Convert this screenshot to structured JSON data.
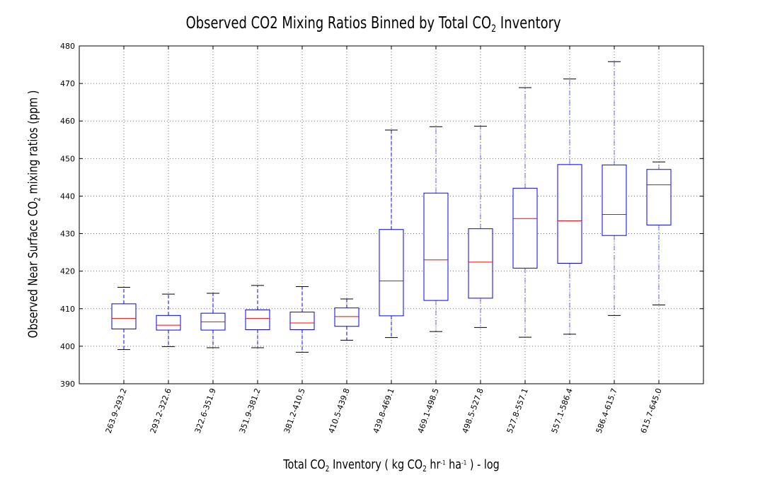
{
  "chart_data": {
    "type": "boxplot",
    "title_main": "Observed CO2 Mixing Ratios  Binned by Total CO",
    "title_sub": "2",
    "title_end": " Inventory",
    "ylabel_main": "Observed Near Surface CO",
    "ylabel_sub": "2",
    "ylabel_end": " mixing ratios (ppm )",
    "xlabel_a": "Total CO",
    "xlabel_sub1": "2",
    "xlabel_b": " Inventory ( kg CO",
    "xlabel_sub2": "2",
    "xlabel_c": " hr",
    "xlabel_sup1": "-1",
    "xlabel_d": " ha",
    "xlabel_sup2": "-1",
    "xlabel_e": " ) - log",
    "ylim": [
      390,
      480
    ],
    "yticks": [
      390,
      400,
      410,
      420,
      430,
      440,
      450,
      460,
      470,
      480
    ],
    "grid": true,
    "box_color": "#0000ff",
    "median_color": "#ff0000",
    "whisker_cap_color": "#000000",
    "categories": [
      "263.9-293.2",
      "293.2-322.6",
      "322.6-351.9",
      "351.9-381.2",
      "381.2-410.5",
      "410.5-439.8",
      "439.8-469.1",
      "469.1-498.5",
      "498.5-527.8",
      "527.8-557.1",
      "557.1-586.4",
      "586.4-615.7",
      "615.7-645.0"
    ],
    "boxes": [
      {
        "whisker_low": 399.1,
        "q1": 404.6,
        "median": 407.4,
        "q3": 411.3,
        "whisker_high": 415.7,
        "whisker_style": "dashed"
      },
      {
        "whisker_low": 399.9,
        "q1": 404.3,
        "median": 405.6,
        "q3": 408.2,
        "whisker_high": 413.9,
        "whisker_style": "dashed"
      },
      {
        "whisker_low": 399.6,
        "q1": 404.3,
        "median": 406.5,
        "q3": 408.8,
        "whisker_high": 414.1,
        "whisker_style": "dashed"
      },
      {
        "whisker_low": 399.6,
        "q1": 404.4,
        "median": 407.4,
        "q3": 409.7,
        "whisker_high": 416.2,
        "whisker_style": "dashed"
      },
      {
        "whisker_low": 398.4,
        "q1": 404.4,
        "median": 406.2,
        "q3": 409.1,
        "whisker_high": 415.9,
        "whisker_style": "dashed"
      },
      {
        "whisker_low": 401.6,
        "q1": 405.3,
        "median": 407.9,
        "q3": 410.2,
        "whisker_high": 412.6,
        "whisker_style": "dashed"
      },
      {
        "whisker_low": 402.3,
        "q1": 408.1,
        "median": 417.4,
        "q3": 431.1,
        "whisker_high": 457.6,
        "whisker_style": "dashed"
      },
      {
        "whisker_low": 403.9,
        "q1": 412.2,
        "median": 423.0,
        "q3": 440.8,
        "whisker_high": 458.5,
        "whisker_style": "dashdot"
      },
      {
        "whisker_low": 405.0,
        "q1": 412.8,
        "median": 422.4,
        "q3": 431.3,
        "whisker_high": 458.6,
        "whisker_style": "dashdot"
      },
      {
        "whisker_low": 402.4,
        "q1": 420.8,
        "median": 434.0,
        "q3": 442.1,
        "whisker_high": 468.9,
        "whisker_style": "dashdot"
      },
      {
        "whisker_low": 403.2,
        "q1": 422.1,
        "median": 433.4,
        "q3": 448.4,
        "whisker_high": 471.2,
        "whisker_style": "dashdot"
      },
      {
        "whisker_low": 408.2,
        "q1": 429.5,
        "median": 435.1,
        "q3": 448.3,
        "whisker_high": 475.8,
        "whisker_style": "dashdot"
      },
      {
        "whisker_low": 411.0,
        "q1": 432.3,
        "median": 443.0,
        "q3": 447.1,
        "whisker_high": 449.1,
        "whisker_style": "dashdot"
      }
    ]
  }
}
